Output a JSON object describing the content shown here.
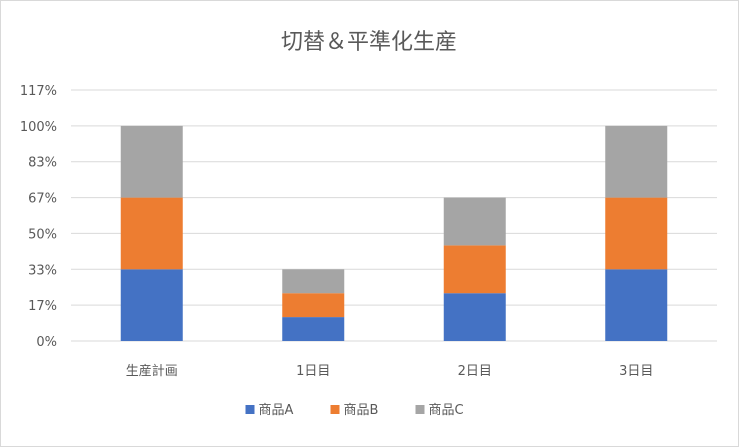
{
  "chart_data": {
    "type": "bar",
    "stacked": true,
    "title": "切替＆平準化生産",
    "xlabel": "",
    "ylabel": "",
    "categories": [
      "生産計画",
      "1日目",
      "2日目",
      "3日目"
    ],
    "y_ticks": [
      "0%",
      "17%",
      "33%",
      "50%",
      "67%",
      "83%",
      "100%",
      "117%"
    ],
    "ylim": [
      0,
      1.1667
    ],
    "grid": true,
    "legend_position": "bottom",
    "series": [
      {
        "name": "商品A",
        "color": "#4472c4",
        "values": [
          0.3333,
          0.1111,
          0.2222,
          0.3333
        ]
      },
      {
        "name": "商品B",
        "color": "#ed7d31",
        "values": [
          0.3333,
          0.1111,
          0.2222,
          0.3333
        ]
      },
      {
        "name": "商品C",
        "color": "#a5a5a5",
        "values": [
          0.3333,
          0.1111,
          0.2222,
          0.3333
        ]
      }
    ]
  }
}
